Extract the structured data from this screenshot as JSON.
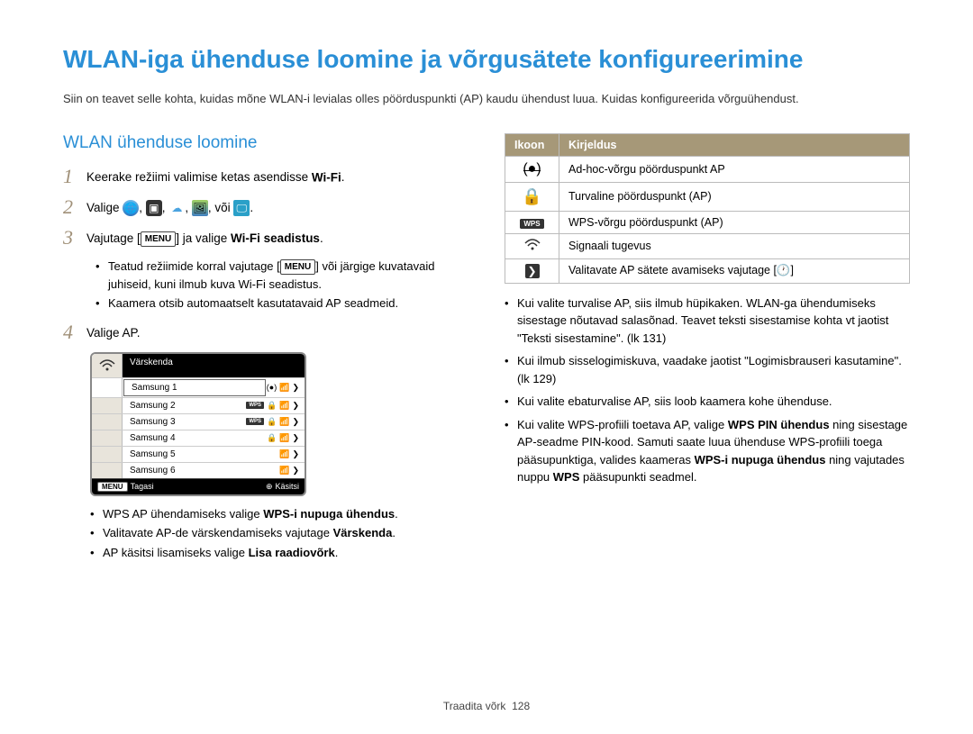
{
  "title": "WLAN-iga ühenduse loomine ja võrgusätete konfigureerimine",
  "intro": "Siin on teavet selle kohta, kuidas mõne WLAN-i levialas olles pöörduspunkti (AP) kaudu ühendust luua. Kuidas konfigureerida võrguühendust.",
  "section_heading": "WLAN ühenduse loomine",
  "steps": {
    "s1_pre": "Keerake režiimi valimise ketas asendisse ",
    "s1_wifi": "Wi-Fi",
    "s1_post": ".",
    "s2_pre": "Valige ",
    "s2_sep": ", ",
    "s2_or": ", või ",
    "s2_post": ".",
    "s3_pre": "Vajutage [",
    "s3_menu": "MENU",
    "s3_mid": "] ja valige ",
    "s3_bold": "Wi-Fi seadistus",
    "s3_post": ".",
    "s3_b1_pre": "Teatud režiimide korral vajutage [",
    "s3_b1_menu": "MENU",
    "s3_b1_post": "] või järgige kuvatavaid juhiseid, kuni ilmub kuva Wi-Fi seadistus.",
    "s3_b2": "Kaamera otsib automaatselt kasutatavaid AP seadmeid.",
    "s4": "Valige AP."
  },
  "ap_box": {
    "refresh": "Värskenda",
    "rows": [
      "Samsung 1",
      "Samsung 2",
      "Samsung 3",
      "Samsung 4",
      "Samsung 5",
      "Samsung 6"
    ],
    "footer_left_badge": "MENU",
    "footer_left": "Tagasi",
    "footer_right": "Käsitsi"
  },
  "left_bullets": {
    "b1_pre": "WPS AP ühendamiseks valige ",
    "b1_bold": "WPS-i nupuga ühendus",
    "b1_post": ".",
    "b2_pre": "Valitavate AP-de värskendamiseks vajutage ",
    "b2_bold": "Värskenda",
    "b2_post": ".",
    "b3_pre": "AP käsitsi lisamiseks valige ",
    "b3_bold": "Lisa raadiovõrk",
    "b3_post": "."
  },
  "table": {
    "h1": "Ikoon",
    "h2": "Kirjeldus",
    "r1": "Ad-hoc-võrgu pöörduspunkt AP",
    "r2": "Turvaline pöörduspunkt (AP)",
    "r3": "WPS-võrgu pöörduspunkt (AP)",
    "r4": "Signaali tugevus",
    "r5_pre": "Valitavate AP sätete avamiseks vajutage [",
    "r5_post": "]"
  },
  "right_bullets": {
    "b1": "Kui valite turvalise AP, siis ilmub hüpikaken. WLAN-ga ühendumiseks sisestage nõutavad salasõnad. Teavet teksti sisestamise kohta vt jaotist \"Teksti sisestamine\". (lk 131)",
    "b2": "Kui ilmub sisselogimiskuva, vaadake jaotist \"Logimisbrauseri kasutamine\". (lk 129)",
    "b3": "Kui valite ebaturvalise AP, siis loob kaamera kohe ühenduse.",
    "b4_pre": "Kui valite WPS-profiili toetava AP, valige ",
    "b4_bold1": "WPS PIN ühendus",
    "b4_mid1": " ning sisestage AP-seadme PIN-kood. Samuti saate luua ühenduse WPS-profiili toega pääsupunktiga, valides kaameras ",
    "b4_bold2": "WPS-i nupuga ühendus",
    "b4_mid2": " ning vajutades nuppu ",
    "b4_bold3": "WPS",
    "b4_post": " pääsupunkti seadmel."
  },
  "footer": {
    "text": "Traadita võrk",
    "page": "128"
  },
  "colors": {
    "accent": "#2a8fd6",
    "stepnum": "#a09078",
    "tableheader": "#a69878"
  }
}
